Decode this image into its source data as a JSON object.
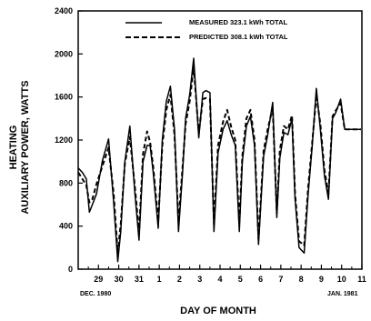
{
  "chart_data": {
    "type": "line",
    "title": "",
    "xlabel": "DAY OF MONTH",
    "ylabel_lines": [
      "HEATING",
      "AUXILIARY POWER, WATTS"
    ],
    "xlim": [
      28,
      42
    ],
    "ylim": [
      0,
      2400
    ],
    "y_ticks": [
      0,
      400,
      800,
      1200,
      1600,
      2000,
      2400
    ],
    "x_ticks": [
      {
        "x": 29,
        "label": "29"
      },
      {
        "x": 30,
        "label": "30"
      },
      {
        "x": 31,
        "label": "31"
      },
      {
        "x": 32,
        "label": "1"
      },
      {
        "x": 33,
        "label": "2"
      },
      {
        "x": 34,
        "label": "3"
      },
      {
        "x": 35,
        "label": "4"
      },
      {
        "x": 36,
        "label": "5"
      },
      {
        "x": 37,
        "label": "6"
      },
      {
        "x": 38,
        "label": "7"
      },
      {
        "x": 39,
        "label": "8"
      },
      {
        "x": 40,
        "label": "9"
      },
      {
        "x": 41,
        "label": "10"
      },
      {
        "x": 42,
        "label": "11"
      }
    ],
    "month_notes": {
      "start": "DEC. 1980",
      "end": "JAN. 1981"
    },
    "grid": false,
    "legend_position": "top",
    "series": [
      {
        "name": "MEASURED 323.1 kWh TOTAL",
        "style": "solid",
        "x": [
          28.0,
          28.2,
          28.4,
          28.55,
          28.7,
          28.9,
          29.2,
          29.5,
          29.75,
          29.95,
          30.1,
          30.3,
          30.55,
          30.8,
          31.0,
          31.2,
          31.4,
          31.55,
          31.7,
          31.95,
          32.15,
          32.35,
          32.55,
          32.75,
          32.95,
          33.15,
          33.3,
          33.5,
          33.7,
          33.95,
          34.15,
          34.3,
          34.5,
          34.7,
          34.9,
          35.15,
          35.35,
          35.55,
          35.75,
          35.95,
          36.1,
          36.3,
          36.5,
          36.7,
          36.9,
          37.15,
          37.35,
          37.6,
          37.8,
          37.95,
          38.15,
          38.35,
          38.55,
          38.7,
          38.9,
          39.15,
          39.35,
          39.55,
          39.75,
          39.95,
          40.15,
          40.35,
          40.55,
          40.7,
          40.95,
          41.15,
          41.35,
          41.55,
          41.75,
          41.95
        ],
        "y": [
          940,
          900,
          840,
          530,
          600,
          700,
          1010,
          1210,
          620,
          70,
          350,
          1000,
          1330,
          700,
          270,
          1000,
          1150,
          1150,
          900,
          380,
          1200,
          1560,
          1700,
          1300,
          350,
          900,
          1400,
          1620,
          1960,
          1220,
          1640,
          1660,
          1640,
          350,
          1080,
          1300,
          1380,
          1250,
          1150,
          350,
          1000,
          1330,
          1420,
          1150,
          230,
          1050,
          1250,
          1550,
          480,
          1030,
          1270,
          1250,
          1400,
          650,
          200,
          150,
          700,
          1150,
          1680,
          1300,
          870,
          650,
          1400,
          1450,
          1580,
          1300,
          1300,
          1300,
          1300,
          1300
        ]
      },
      {
        "name": "PREDICTED 308.1 kWh TOTAL",
        "style": "dashed",
        "x": [
          28.0,
          28.2,
          28.4,
          28.55,
          28.7,
          28.9,
          29.2,
          29.5,
          29.75,
          29.95,
          30.1,
          30.3,
          30.55,
          30.8,
          31.0,
          31.2,
          31.4,
          31.55,
          31.7,
          31.95,
          32.15,
          32.35,
          32.55,
          32.75,
          32.95,
          33.15,
          33.3,
          33.5,
          33.7,
          33.95,
          34.15,
          34.3,
          34.5,
          34.7,
          34.9,
          35.15,
          35.35,
          35.55,
          35.75,
          35.95,
          36.1,
          36.3,
          36.5,
          36.7,
          36.9,
          37.15,
          37.35,
          37.6,
          37.8,
          37.95,
          38.15,
          38.35,
          38.55,
          38.7,
          38.9,
          39.15,
          39.35,
          39.55,
          39.75,
          39.95,
          40.15,
          40.35,
          40.55,
          40.7,
          40.95,
          41.15,
          41.35,
          41.55,
          41.75,
          41.95
        ],
        "y": [
          900,
          840,
          780,
          620,
          650,
          790,
          960,
          1130,
          700,
          150,
          420,
          980,
          1230,
          760,
          340,
          1070,
          1280,
          1180,
          950,
          450,
          1150,
          1480,
          1620,
          1250,
          440,
          950,
          1350,
          1560,
          1880,
          1260,
          1580,
          1590,
          1580,
          420,
          1150,
          1370,
          1480,
          1320,
          1200,
          430,
          1050,
          1400,
          1480,
          1200,
          280,
          1100,
          1300,
          1500,
          520,
          1100,
          1330,
          1300,
          1430,
          700,
          260,
          220,
          760,
          1180,
          1620,
          1350,
          920,
          700,
          1420,
          1470,
          1540,
          1300,
          1300,
          1300,
          1300,
          1300
        ]
      }
    ]
  }
}
